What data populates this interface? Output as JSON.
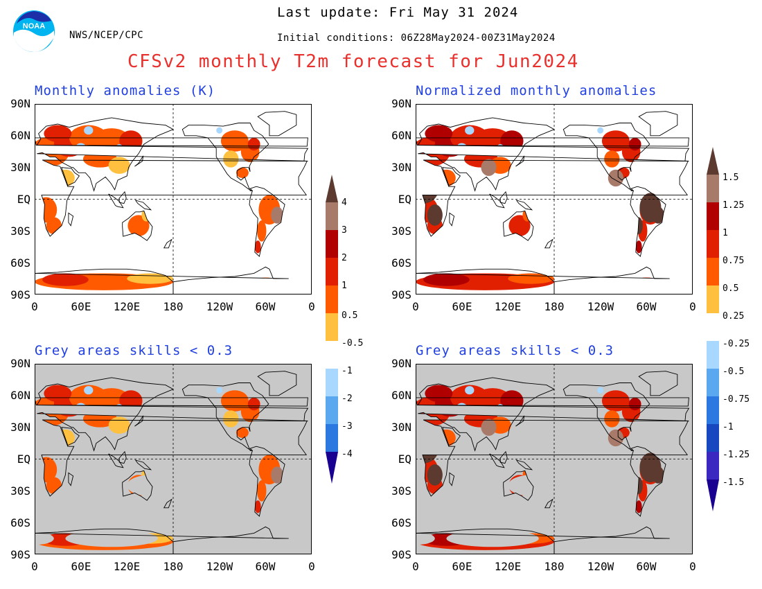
{
  "header": {
    "last_update": "Last update: Fri May 31 2024",
    "agency": "NWS/NCEP/CPC",
    "initial_conditions": "Initial conditions: 06Z28May2024-00Z31May2024",
    "title": "CFSv2 monthly T2m forecast for Jun2024",
    "logo_text": "NOAA"
  },
  "panels": {
    "top_left": {
      "title": "Monthly anomalies (K)"
    },
    "top_right": {
      "title": "Normalized monthly anomalies"
    },
    "bottom_left": {
      "title": "Grey areas skills < 0.3"
    },
    "bottom_right": {
      "title": "Grey areas skills < 0.3"
    }
  },
  "axes": {
    "lat_labels": [
      "90N",
      "60N",
      "30N",
      "EQ",
      "30S",
      "60S",
      "90S"
    ],
    "lon_labels": [
      "0",
      "60E",
      "120E",
      "180",
      "120W",
      "60W",
      "0"
    ]
  },
  "colorbar_left": {
    "labels": [
      "4",
      "3",
      "2",
      "1",
      "0.5",
      "-0.5",
      "-1",
      "-2",
      "-3",
      "-4"
    ]
  },
  "colorbar_right": {
    "labels": [
      "1.5",
      "1.25",
      "1",
      "0.75",
      "0.5",
      "0.25",
      "-0.25",
      "-0.5",
      "-0.75",
      "-1",
      "-1.25",
      "-1.5"
    ]
  },
  "colors": {
    "warm": [
      "#ffc040",
      "#ff5a00",
      "#e02000",
      "#b00000",
      "#a87a6a",
      "#5c3a30"
    ],
    "cool": [
      "#a8d8ff",
      "#5aa8f0",
      "#2a78e0",
      "#1848c0",
      "#3a28c0",
      "#1a0090"
    ],
    "neutral": "#ffffff",
    "skill_mask": "#c8c8c8",
    "title_red": "#e8302c",
    "panel_title_blue": "#1f3fe0"
  }
}
